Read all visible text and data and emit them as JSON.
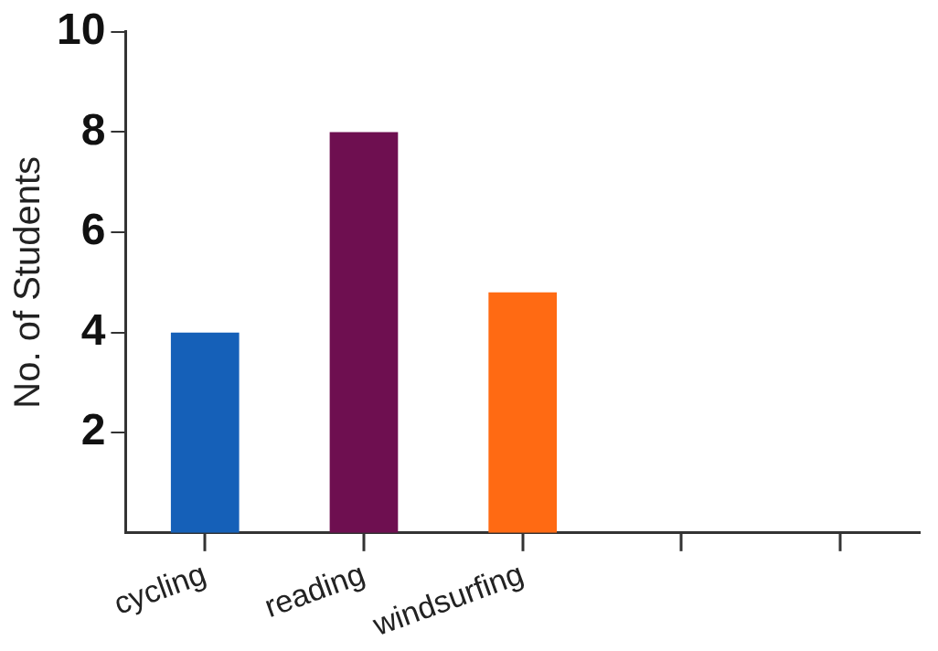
{
  "chart_data": {
    "type": "bar",
    "ylabel": "No. of Students",
    "categories": [
      "cycling",
      "reading",
      "windsurfing",
      null,
      null
    ],
    "values": [
      4,
      8,
      4.8,
      null,
      null
    ],
    "colors": [
      "#1560b8",
      "#6e0f50",
      "#ff6a13",
      "#888888",
      "#888888"
    ],
    "ylim": [
      0,
      10
    ],
    "yticks": [
      2,
      4,
      6,
      8,
      10
    ],
    "grid": false,
    "legend": false
  }
}
